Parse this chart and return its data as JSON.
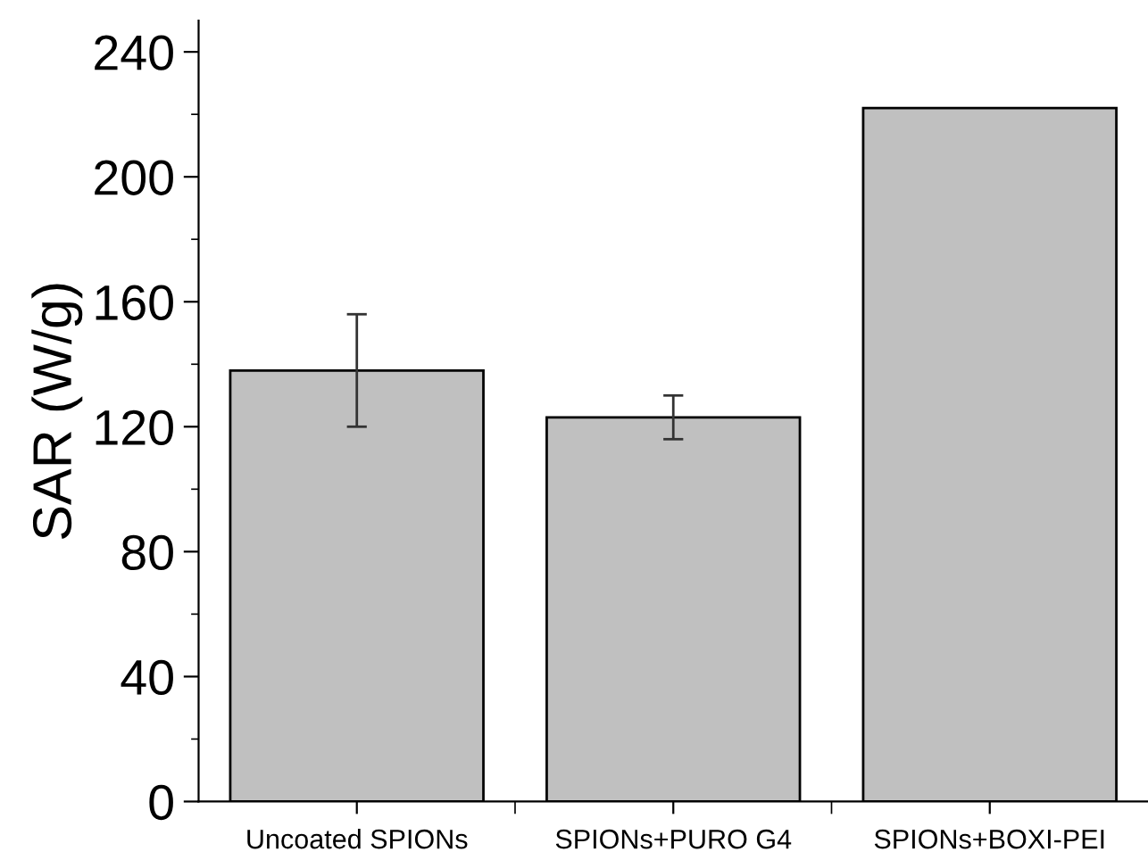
{
  "chart_data": {
    "type": "bar",
    "ylabel": "SAR (W/g)",
    "categories": [
      "Uncoated SPIONs",
      "SPIONs+PURO G4",
      "SPIONs+BOXI-PEI"
    ],
    "values": [
      138,
      123,
      222
    ],
    "errors": [
      [
        120,
        156
      ],
      [
        116,
        130
      ],
      null
    ],
    "color": "#c0c0c0",
    "ylim": [
      0,
      250
    ],
    "yticks": [
      0,
      40,
      80,
      120,
      160,
      200,
      240
    ],
    "grid": false
  }
}
